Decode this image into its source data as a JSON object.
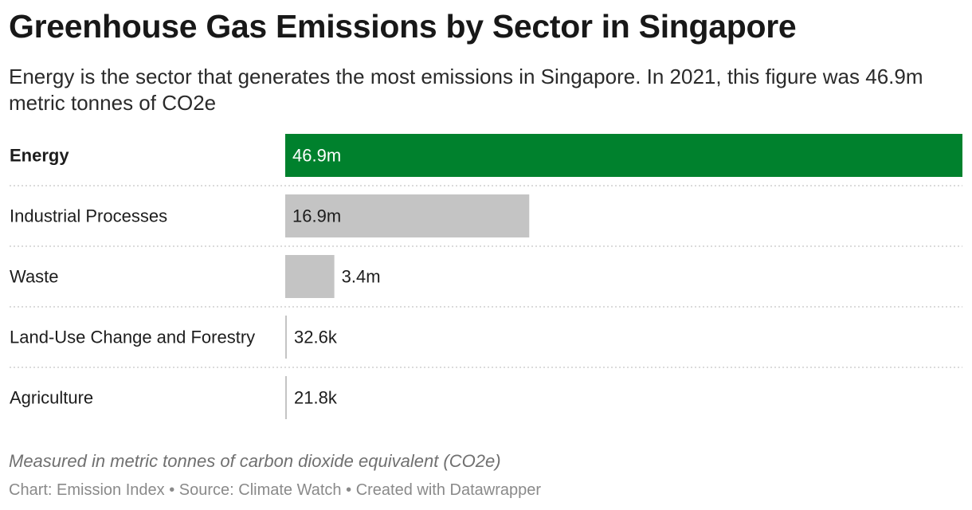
{
  "title": "Greenhouse Gas Emissions by Sector in Singapore",
  "subtitle": "Energy is the sector that generates the most emissions in Singapore. In 2021, this figure was 46.9m metric tonnes of CO2e",
  "note": "Measured in metric tonnes of carbon dioxide equivalent (CO2e)",
  "footer": {
    "chart_label": "Chart: Emission Index",
    "separator": "•",
    "source": "Source: Climate Watch",
    "created": "Created with Datawrapper"
  },
  "colors": {
    "highlight": "#00812d",
    "default_bar": "#c4c4c4",
    "divider": "#cfcfcf"
  },
  "chart_data": {
    "type": "bar",
    "orientation": "horizontal",
    "categories": [
      "Energy",
      "Industrial Processes",
      "Waste",
      "Land-Use Change and Forestry",
      "Agriculture"
    ],
    "values": [
      46900000,
      16900000,
      3400000,
      32600,
      21800
    ],
    "value_labels": [
      "46.9m",
      "16.9m",
      "3.4m",
      "32.6k",
      "21.8k"
    ],
    "highlight": [
      "Energy"
    ],
    "xlim": [
      0,
      46900000
    ],
    "title": "Greenhouse Gas Emissions by Sector in Singapore",
    "xlabel": "",
    "ylabel": "",
    "grid": false
  }
}
